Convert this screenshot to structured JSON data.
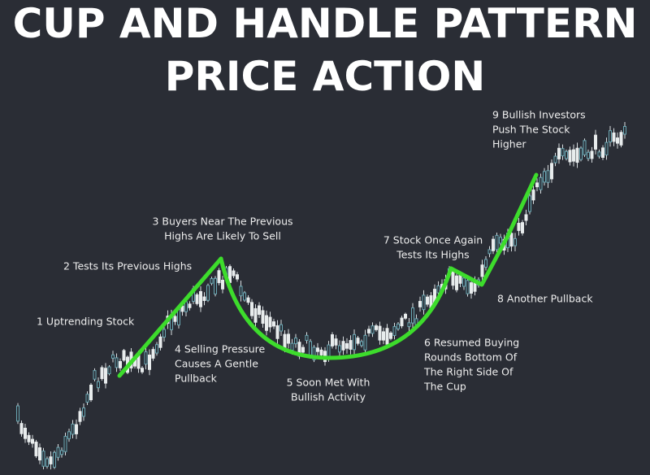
{
  "title": {
    "lines": [
      "CUP AND HANDLE PATTERN",
      "PRICE ACTION"
    ]
  },
  "annotations": [
    {
      "lines": [
        "1 Uptrending Stock"
      ]
    },
    {
      "lines": [
        "2 Tests Its Previous Highs"
      ]
    },
    {
      "lines": [
        "3 Buyers Near The Previous",
        "Highs Are Likely To Sell"
      ]
    },
    {
      "lines": [
        "4 Selling Pressure",
        "Causes A Gentle",
        "Pullback"
      ]
    },
    {
      "lines": [
        "5 Soon Met With",
        "Bullish Activity"
      ]
    },
    {
      "lines": [
        "6 Resumed Buying",
        "Rounds Bottom Of",
        "The Right Side Of",
        "The Cup"
      ]
    },
    {
      "lines": [
        "7 Stock Once Again",
        "Tests Its Highs"
      ]
    },
    {
      "lines": [
        "8 Another Pullback"
      ]
    },
    {
      "lines": [
        "9 Bullish Investors",
        "Push The Stock",
        "Higher"
      ]
    }
  ]
}
